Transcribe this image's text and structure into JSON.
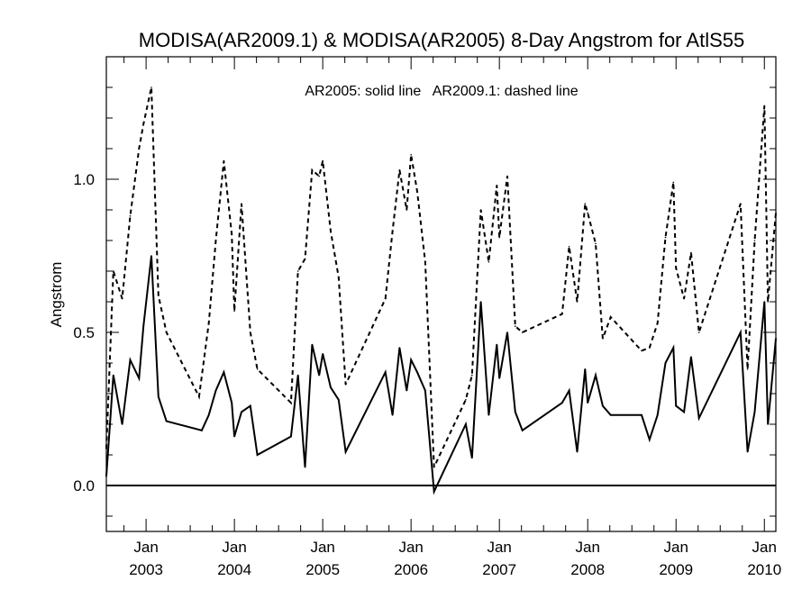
{
  "chart_data": {
    "type": "line",
    "title": "MODISA(AR2009.1) & MODISA(AR2005) 8-Day Angstrom for AtlS55",
    "ylabel": "Angstrom",
    "xlabel": "",
    "annotation": "AR2005: solid line   AR2009.1: dashed line",
    "ylim": [
      -0.15,
      1.4
    ],
    "xlim": [
      2002.55,
      2010.13
    ],
    "y_ticks": [
      {
        "value": 0.0,
        "label": "0.0"
      },
      {
        "value": 0.5,
        "label": "0.5"
      },
      {
        "value": 1.0,
        "label": "1.0"
      }
    ],
    "x_ticks": [
      {
        "value": 2003.0,
        "month": "Jan",
        "year": "2003"
      },
      {
        "value": 2004.0,
        "month": "Jan",
        "year": "2004"
      },
      {
        "value": 2005.0,
        "month": "Jan",
        "year": "2005"
      },
      {
        "value": 2006.0,
        "month": "Jan",
        "year": "2006"
      },
      {
        "value": 2007.0,
        "month": "Jan",
        "year": "2007"
      },
      {
        "value": 2008.0,
        "month": "Jan",
        "year": "2008"
      },
      {
        "value": 2009.0,
        "month": "Jan",
        "year": "2009"
      },
      {
        "value": 2010.0,
        "month": "Jan",
        "year": "2010"
      }
    ],
    "reference_lines": [
      {
        "y": 0.0,
        "style": "solid"
      }
    ],
    "grid": false,
    "series": [
      {
        "name": "AR2005",
        "style": "solid",
        "color": "#000000",
        "points": [
          [
            2002.55,
            0.03
          ],
          [
            2002.63,
            0.36
          ],
          [
            2002.73,
            0.2
          ],
          [
            2002.82,
            0.41
          ],
          [
            2002.92,
            0.35
          ],
          [
            2002.97,
            0.52
          ],
          [
            2003.06,
            0.75
          ],
          [
            2003.14,
            0.29
          ],
          [
            2003.23,
            0.21
          ],
          [
            2003.63,
            0.18
          ],
          [
            2003.71,
            0.23
          ],
          [
            2003.79,
            0.31
          ],
          [
            2003.88,
            0.37
          ],
          [
            2003.97,
            0.27
          ],
          [
            2004.0,
            0.16
          ],
          [
            2004.08,
            0.24
          ],
          [
            2004.18,
            0.26
          ],
          [
            2004.26,
            0.1
          ],
          [
            2004.64,
            0.16
          ],
          [
            2004.72,
            0.36
          ],
          [
            2004.8,
            0.06
          ],
          [
            2004.88,
            0.46
          ],
          [
            2004.96,
            0.36
          ],
          [
            2005.0,
            0.43
          ],
          [
            2005.09,
            0.32
          ],
          [
            2005.18,
            0.28
          ],
          [
            2005.26,
            0.11
          ],
          [
            2005.71,
            0.37
          ],
          [
            2005.79,
            0.23
          ],
          [
            2005.87,
            0.45
          ],
          [
            2005.95,
            0.31
          ],
          [
            2006.0,
            0.41
          ],
          [
            2006.07,
            0.37
          ],
          [
            2006.16,
            0.31
          ],
          [
            2006.26,
            -0.02
          ],
          [
            2006.62,
            0.2
          ],
          [
            2006.69,
            0.09
          ],
          [
            2006.79,
            0.6
          ],
          [
            2006.88,
            0.23
          ],
          [
            2006.97,
            0.46
          ],
          [
            2007.0,
            0.35
          ],
          [
            2007.09,
            0.5
          ],
          [
            2007.18,
            0.24
          ],
          [
            2007.26,
            0.18
          ],
          [
            2007.71,
            0.27
          ],
          [
            2007.79,
            0.31
          ],
          [
            2007.88,
            0.11
          ],
          [
            2007.97,
            0.38
          ],
          [
            2008.0,
            0.27
          ],
          [
            2008.09,
            0.36
          ],
          [
            2008.17,
            0.26
          ],
          [
            2008.26,
            0.23
          ],
          [
            2008.61,
            0.23
          ],
          [
            2008.7,
            0.15
          ],
          [
            2008.79,
            0.23
          ],
          [
            2008.88,
            0.4
          ],
          [
            2008.97,
            0.45
          ],
          [
            2009.0,
            0.26
          ],
          [
            2009.09,
            0.24
          ],
          [
            2009.17,
            0.42
          ],
          [
            2009.26,
            0.22
          ],
          [
            2009.73,
            0.5
          ],
          [
            2009.81,
            0.11
          ],
          [
            2009.89,
            0.24
          ],
          [
            2010.0,
            0.6
          ],
          [
            2010.04,
            0.2
          ],
          [
            2010.13,
            0.48
          ]
        ]
      },
      {
        "name": "AR2009.1",
        "style": "dashed",
        "color": "#000000",
        "points": [
          [
            2002.55,
            0.12
          ],
          [
            2002.63,
            0.7
          ],
          [
            2002.73,
            0.61
          ],
          [
            2002.82,
            0.88
          ],
          [
            2002.92,
            1.1
          ],
          [
            2002.97,
            1.18
          ],
          [
            2003.06,
            1.3
          ],
          [
            2003.14,
            0.62
          ],
          [
            2003.23,
            0.5
          ],
          [
            2003.6,
            0.29
          ],
          [
            2003.71,
            0.53
          ],
          [
            2003.79,
            0.8
          ],
          [
            2003.88,
            1.06
          ],
          [
            2003.97,
            0.82
          ],
          [
            2004.0,
            0.57
          ],
          [
            2004.08,
            0.92
          ],
          [
            2004.18,
            0.5
          ],
          [
            2004.26,
            0.38
          ],
          [
            2004.64,
            0.27
          ],
          [
            2004.72,
            0.7
          ],
          [
            2004.8,
            0.74
          ],
          [
            2004.88,
            1.03
          ],
          [
            2004.96,
            1.01
          ],
          [
            2005.0,
            1.06
          ],
          [
            2005.09,
            0.83
          ],
          [
            2005.18,
            0.68
          ],
          [
            2005.26,
            0.33
          ],
          [
            2005.71,
            0.61
          ],
          [
            2005.79,
            0.83
          ],
          [
            2005.87,
            1.03
          ],
          [
            2005.95,
            0.9
          ],
          [
            2006.0,
            1.08
          ],
          [
            2006.07,
            0.96
          ],
          [
            2006.16,
            0.73
          ],
          [
            2006.26,
            0.06
          ],
          [
            2006.62,
            0.28
          ],
          [
            2006.69,
            0.36
          ],
          [
            2006.79,
            0.9
          ],
          [
            2006.88,
            0.73
          ],
          [
            2006.97,
            0.98
          ],
          [
            2007.0,
            0.81
          ],
          [
            2007.09,
            1.01
          ],
          [
            2007.18,
            0.52
          ],
          [
            2007.26,
            0.5
          ],
          [
            2007.71,
            0.56
          ],
          [
            2007.79,
            0.78
          ],
          [
            2007.88,
            0.6
          ],
          [
            2007.97,
            0.92
          ],
          [
            2008.0,
            0.89
          ],
          [
            2008.09,
            0.79
          ],
          [
            2008.17,
            0.48
          ],
          [
            2008.26,
            0.55
          ],
          [
            2008.61,
            0.44
          ],
          [
            2008.7,
            0.45
          ],
          [
            2008.79,
            0.53
          ],
          [
            2008.88,
            0.81
          ],
          [
            2008.97,
            0.99
          ],
          [
            2009.0,
            0.71
          ],
          [
            2009.09,
            0.61
          ],
          [
            2009.17,
            0.76
          ],
          [
            2009.26,
            0.5
          ],
          [
            2009.73,
            0.92
          ],
          [
            2009.81,
            0.38
          ],
          [
            2009.89,
            0.8
          ],
          [
            2010.0,
            1.24
          ],
          [
            2010.04,
            0.6
          ],
          [
            2010.13,
            0.89
          ]
        ]
      }
    ]
  }
}
